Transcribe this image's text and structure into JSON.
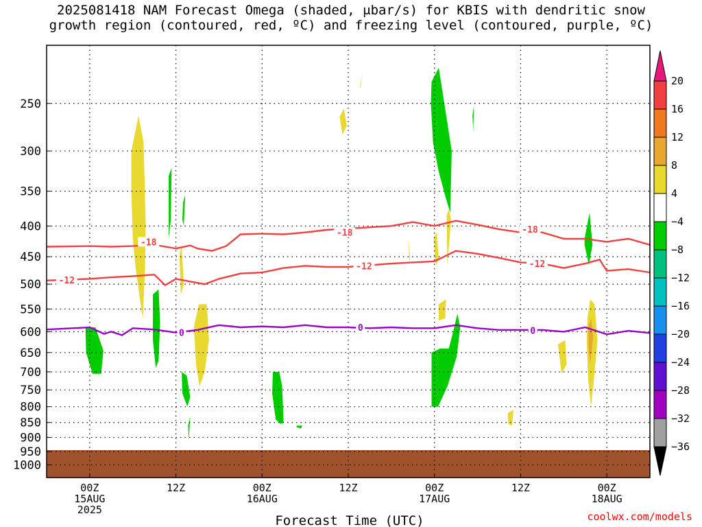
{
  "title_line1": "2025081418 NAM Forecast Omega (shaded, μbar/s) for KBIS with dendritic snow",
  "title_line2": "growth region (contoured, red, ºC) and freezing level (contoured, purple, ºC)",
  "watermark": "coolwx.com/models",
  "chart_data": {
    "type": "heatmap",
    "title": "2025081418 NAM Forecast Omega (shaded, μbar/s) for KBIS with dendritic snow growth region (contoured, red, ºC) and freezing level (contoured, purple, ºC)",
    "xlabel": "Forecast Time (UTC)",
    "ylabel": "",
    "x_range_hours": [
      -6,
      78
    ],
    "y_range_hPa": [
      200,
      1050
    ],
    "y_scale": "log",
    "grid": true,
    "x_ticks": [
      {
        "hour": 0,
        "lines": [
          "00Z",
          "15AUG",
          "2025"
        ]
      },
      {
        "hour": 12,
        "lines": [
          "12Z"
        ]
      },
      {
        "hour": 24,
        "lines": [
          "00Z",
          "16AUG"
        ]
      },
      {
        "hour": 36,
        "lines": [
          "12Z"
        ]
      },
      {
        "hour": 48,
        "lines": [
          "00Z",
          "17AUG"
        ]
      },
      {
        "hour": 60,
        "lines": [
          "12Z"
        ]
      },
      {
        "hour": 72,
        "lines": [
          "00Z",
          "18AUG"
        ]
      }
    ],
    "y_ticks": [
      250,
      300,
      350,
      400,
      450,
      500,
      550,
      600,
      650,
      700,
      750,
      800,
      850,
      900,
      950,
      1000
    ],
    "colorbar": {
      "labels": [
        "20",
        "16",
        "12",
        "8",
        "4",
        "−4",
        "−8",
        "−12",
        "−16",
        "−20",
        "−24",
        "−28",
        "−32",
        "−36"
      ],
      "colors": [
        "#e8187a",
        "#f04040",
        "#f07820",
        "#e8a830",
        "#e8d830",
        "#ffffff",
        "#00cc00",
        "#00c080",
        "#00c0c0",
        "#1890f0",
        "#2040e0",
        "#6010d0",
        "#a000c0",
        "#a0a0a0",
        "#000000"
      ]
    },
    "colors": {
      "yellow": "#e8d830",
      "orange": "#e8a830",
      "green": "#00cc00",
      "dgz_contour": "#f04040",
      "freezing_contour": "#9b00c8",
      "ground": "#a0522d"
    },
    "series": [
      {
        "name": "-18",
        "type": "contour",
        "x": [
          -6,
          0,
          3,
          6,
          9,
          12,
          14,
          15,
          17,
          19,
          21,
          24,
          27,
          30,
          33,
          36,
          39,
          42,
          45,
          48,
          51,
          54,
          57,
          60,
          63,
          66,
          69,
          72,
          75,
          78
        ],
        "y": [
          433,
          432,
          433,
          432,
          430,
          436,
          431,
          436,
          440,
          432,
          413,
          412,
          413,
          410,
          406,
          404,
          402,
          400,
          394,
          400,
          392,
          398,
          405,
          410,
          410,
          420,
          420,
          425,
          420,
          430
        ]
      },
      {
        "name": "-12",
        "type": "contour",
        "x": [
          -6,
          0,
          3,
          6,
          9,
          10.5,
          12,
          14,
          16,
          18,
          21,
          24,
          27,
          30,
          33,
          36,
          39,
          42,
          45,
          48,
          51,
          54,
          57,
          60,
          63,
          66,
          69,
          71,
          72,
          75,
          78
        ],
        "y": [
          493,
          490,
          487,
          485,
          482,
          502,
          490,
          495,
          500,
          490,
          480,
          478,
          470,
          466,
          468,
          468,
          465,
          462,
          460,
          458,
          440,
          445,
          452,
          460,
          462,
          470,
          462,
          455,
          475,
          472,
          478
        ]
      },
      {
        "name": "0",
        "type": "contour",
        "x": [
          -6,
          0,
          2,
          3,
          4.5,
          6,
          9,
          12,
          15,
          18,
          21,
          24,
          27,
          30,
          33,
          36,
          39,
          42,
          45,
          48,
          51,
          54,
          57,
          60,
          63,
          66,
          69,
          72,
          75,
          78
        ],
        "y": [
          595,
          590,
          605,
          600,
          608,
          592,
          595,
          602,
          596,
          585,
          590,
          588,
          590,
          585,
          590,
          590,
          592,
          590,
          592,
          592,
          585,
          592,
          596,
          596,
          596,
          600,
          590,
          606,
          598,
          603
        ]
      }
    ],
    "contour_labels": [
      {
        "text": "-18",
        "x": 8.2,
        "y": 425,
        "series": "-18"
      },
      {
        "text": "-18",
        "x": 35.5,
        "y": 410,
        "series": "-18"
      },
      {
        "text": "-18",
        "x": 61.3,
        "y": 405,
        "series": "-18"
      },
      {
        "text": "-12",
        "x": -3.2,
        "y": 492,
        "series": "-12"
      },
      {
        "text": "-12",
        "x": 38.2,
        "y": 466,
        "series": "-12"
      },
      {
        "text": "-12",
        "x": 62.3,
        "y": 462,
        "series": "-12"
      },
      {
        "text": "0",
        "x": 12.8,
        "y": 602,
        "series": "0"
      },
      {
        "text": "0",
        "x": 37.7,
        "y": 590,
        "series": "0"
      },
      {
        "text": "0",
        "x": 61.7,
        "y": 597,
        "series": "0"
      }
    ],
    "shaded_regions": [
      {
        "color": "yellow",
        "x": [
          5.8,
          6.8,
          7.5,
          7.8,
          7.7,
          7.4,
          7.0,
          6.4,
          6.0,
          5.8
        ],
        "y": [
          300,
          262,
          290,
          400,
          470,
          570,
          530,
          470,
          420,
          350
        ]
      },
      {
        "color": "yellow",
        "x": [
          14.5,
          15.2,
          16.3,
          16.6,
          16.0,
          15.3,
          14.8
        ],
        "y": [
          590,
          540,
          540,
          620,
          700,
          740,
          680
        ]
      },
      {
        "color": "yellow",
        "x": [
          12.5,
          12.8,
          13.1,
          12.7
        ],
        "y": [
          450,
          430,
          500,
          520
        ]
      },
      {
        "color": "yellow",
        "x": [
          34.8,
          35.4,
          35.8,
          35.2
        ],
        "y": [
          263,
          255,
          272,
          282
        ]
      },
      {
        "color": "yellow",
        "x": [
          37.6,
          38.0,
          37.7
        ],
        "y": [
          235,
          222,
          235
        ]
      },
      {
        "color": "yellow",
        "x": [
          44.4,
          44.6,
          44.5
        ],
        "y": [
          420,
          450,
          460
        ]
      },
      {
        "color": "yellow",
        "x": [
          47.9,
          48.3,
          48.6,
          48.2
        ],
        "y": [
          420,
          410,
          455,
          465
        ]
      },
      {
        "color": "yellow",
        "x": [
          49.7,
          50.0,
          50.3,
          50.1,
          49.8
        ],
        "y": [
          385,
          375,
          390,
          420,
          465
        ]
      },
      {
        "color": "yellow",
        "x": [
          48.6,
          49.6,
          49.5,
          48.6
        ],
        "y": [
          540,
          530,
          570,
          575
        ]
      },
      {
        "color": "yellow",
        "x": [
          58.2,
          59.0,
          58.8,
          58.3
        ],
        "y": [
          820,
          810,
          860,
          855
        ]
      },
      {
        "color": "yellow",
        "x": [
          65.2,
          66.2,
          66.4,
          65.7
        ],
        "y": [
          630,
          620,
          680,
          705
        ]
      },
      {
        "color": "yellow",
        "x": [
          69.3,
          69.7,
          70.3,
          70.7,
          70.2,
          69.8,
          69.4,
          69.2
        ],
        "y": [
          570,
          530,
          540,
          620,
          720,
          800,
          720,
          620
        ]
      },
      {
        "color": "orange",
        "x": [
          69.4,
          69.8,
          70.1,
          69.7,
          69.5
        ],
        "y": [
          590,
          570,
          610,
          680,
          650
        ]
      },
      {
        "color": "green",
        "x": [
          -0.6,
          0.8,
          1.9,
          1.6,
          0.4,
          -0.5
        ],
        "y": [
          590,
          590,
          645,
          705,
          705,
          650
        ]
      },
      {
        "color": "green",
        "x": [
          8.8,
          9.6,
          9.8,
          9.6,
          9.2,
          8.8
        ],
        "y": [
          520,
          510,
          580,
          670,
          690,
          620
        ]
      },
      {
        "color": "green",
        "x": [
          11.0,
          11.4,
          11.3,
          11.0
        ],
        "y": [
          330,
          320,
          390,
          420
        ]
      },
      {
        "color": "green",
        "x": [
          13.0,
          13.3,
          13.1,
          12.9
        ],
        "y": [
          365,
          355,
          400,
          390
        ]
      },
      {
        "color": "green",
        "x": [
          12.8,
          13.5,
          14.0,
          13.6,
          12.9
        ],
        "y": [
          700,
          710,
          770,
          800,
          760
        ]
      },
      {
        "color": "green",
        "x": [
          13.7,
          14.0,
          13.8
        ],
        "y": [
          860,
          830,
          910
        ]
      },
      {
        "color": "green",
        "x": [
          25.5,
          26.4,
          26.8,
          27.0,
          26.6,
          25.9,
          25.4
        ],
        "y": [
          700,
          700,
          740,
          850,
          855,
          840,
          760
        ]
      },
      {
        "color": "green",
        "x": [
          28.8,
          29.6,
          29.4,
          28.8
        ],
        "y": [
          860,
          860,
          870,
          865
        ]
      },
      {
        "color": "green",
        "x": [
          47.6,
          48.6,
          49.6,
          50.4,
          50.2,
          49.6,
          48.6,
          47.8,
          47.5
        ],
        "y": [
          230,
          218,
          260,
          300,
          380,
          360,
          325,
          290,
          250
        ]
      },
      {
        "color": "green",
        "x": [
          47.6,
          48.8,
          50.0,
          50.6,
          51.2,
          51.6,
          51.1,
          49.8,
          48.5,
          47.6
        ],
        "y": [
          650,
          640,
          640,
          600,
          560,
          590,
          660,
          740,
          800,
          800
        ]
      },
      {
        "color": "green",
        "x": [
          53.3,
          53.5,
          53.4
        ],
        "y": [
          262,
          252,
          278
        ]
      },
      {
        "color": "green",
        "x": [
          68.9,
          69.6,
          70.0,
          69.5,
          68.9
        ],
        "y": [
          420,
          380,
          430,
          465,
          430
        ]
      }
    ],
    "ground_region": {
      "x": [
        -6,
        78
      ],
      "y_top_hPa": [
        945,
        945
      ],
      "y_bottom_hPa": 1050
    }
  }
}
